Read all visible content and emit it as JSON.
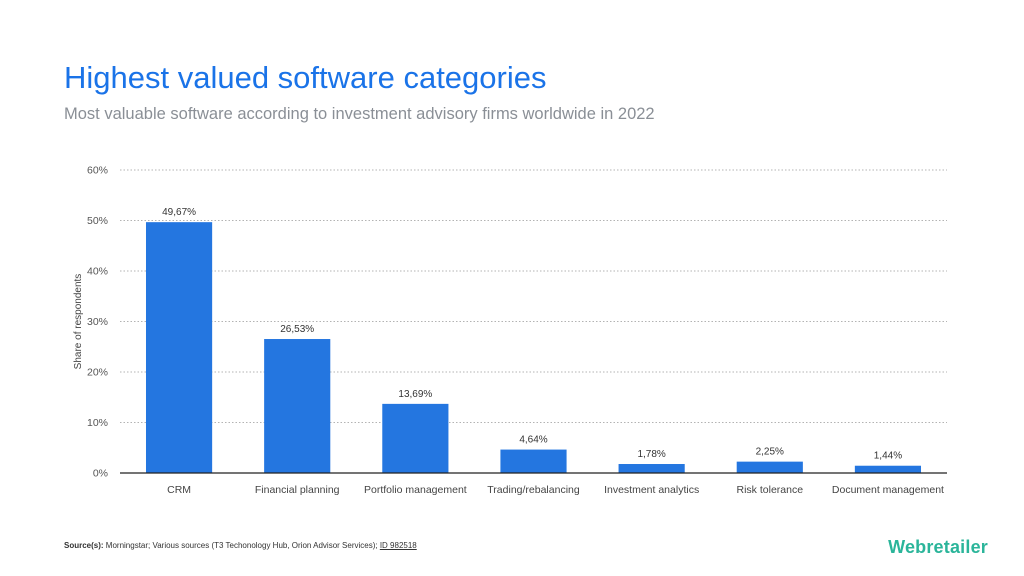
{
  "header": {
    "title": "Highest valued software categories",
    "subtitle": "Most valuable software according to investment advisory firms worldwide in 2022"
  },
  "chart_data": {
    "type": "bar",
    "title": "Highest valued software categories",
    "subtitle": "Most valuable software according to investment advisory firms worldwide in 2022",
    "xlabel": "",
    "ylabel": "Share of respondents",
    "ylim": [
      0,
      60
    ],
    "yticks": [
      0,
      10,
      20,
      30,
      40,
      50,
      60
    ],
    "ytick_labels": [
      "0%",
      "10%",
      "20%",
      "30%",
      "40%",
      "50%",
      "60%"
    ],
    "grid": true,
    "bar_color": "#2476e0",
    "categories": [
      "CRM",
      "Financial planning",
      "Portfolio management",
      "Trading/rebalancing",
      "Investment analytics",
      "Risk tolerance",
      "Document management"
    ],
    "values": [
      49.67,
      26.53,
      13.69,
      4.64,
      1.78,
      2.25,
      1.44
    ],
    "value_labels": [
      "49,67%",
      "26,53%",
      "13,69%",
      "4,64%",
      "1,78%",
      "2,25%",
      "1,44%"
    ]
  },
  "footer": {
    "source_prefix": "Source(s):",
    "source_text": " Morningstar; Various sources (T3 Techonology Hub, Orion Advisor Services); ",
    "source_id": "ID 982518",
    "brand": "Webretailer"
  },
  "colors": {
    "title": "#1a73e8",
    "bar": "#2476e0",
    "brand": "#2bb59a"
  }
}
